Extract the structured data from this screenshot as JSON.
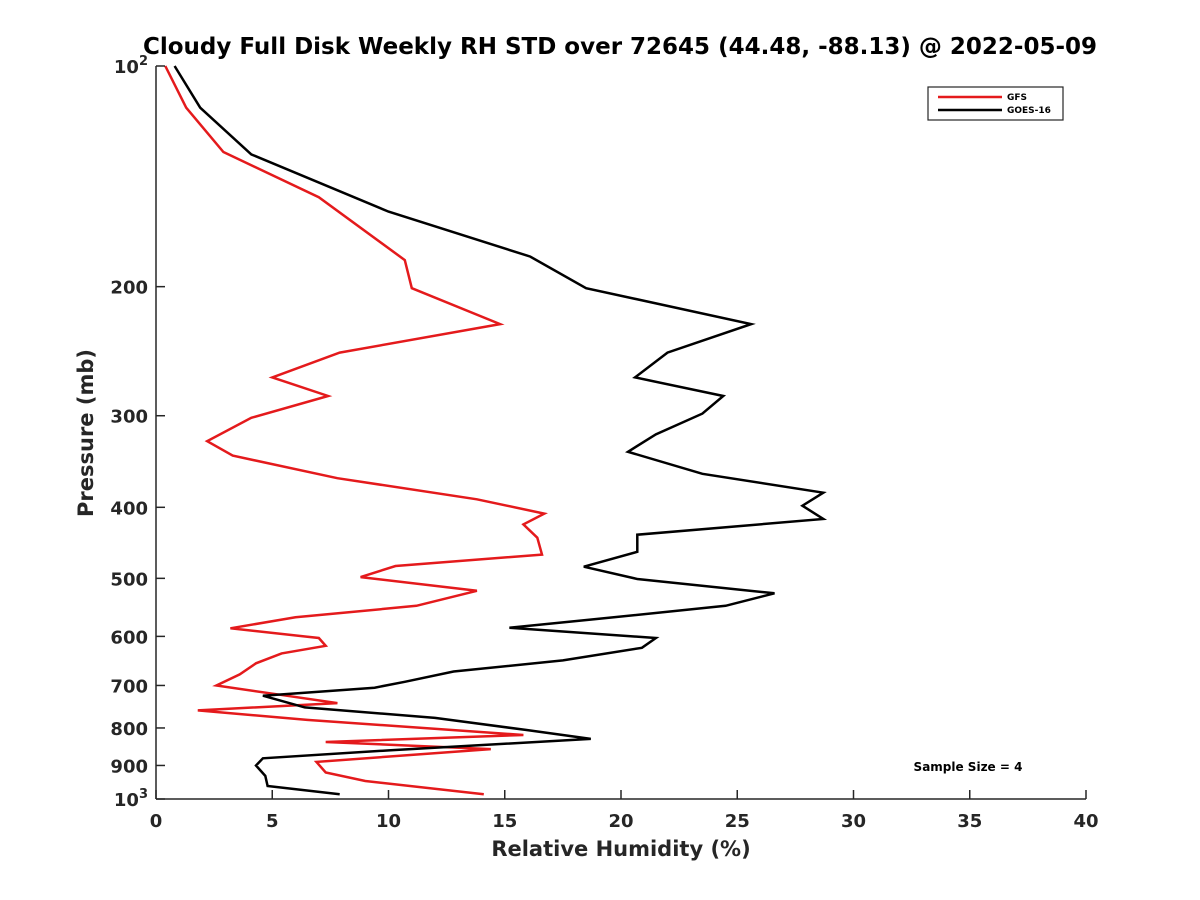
{
  "chart_data": {
    "type": "line",
    "title": "Cloudy Full Disk Weekly RH STD over 72645 (44.48, -88.13) @ 2022-05-09",
    "xlabel": "Relative Humidity (%)",
    "ylabel": "Pressure (mb)",
    "xlim": [
      0,
      40
    ],
    "ylim": [
      100,
      1000
    ],
    "y_scale": "log",
    "y_reversed": true,
    "grid": false,
    "legend_position": "top-right",
    "x_ticks": [
      "0",
      "5",
      "10",
      "15",
      "20",
      "25",
      "30",
      "35",
      "40"
    ],
    "y_ticks": [
      {
        "base": "10",
        "exp": "2"
      },
      {
        "base": "200",
        "exp": ""
      },
      {
        "base": "300",
        "exp": ""
      },
      {
        "base": "400",
        "exp": ""
      },
      {
        "base": "500",
        "exp": ""
      },
      {
        "base": "600",
        "exp": ""
      },
      {
        "base": "700",
        "exp": ""
      },
      {
        "base": "800",
        "exp": ""
      },
      {
        "base": "900",
        "exp": ""
      },
      {
        "base": "10",
        "exp": "3"
      }
    ],
    "annotation": "Sample Size = 4",
    "series": [
      {
        "name": "GFS",
        "color": "#e41a1c",
        "points": [
          [
            0.4,
            100
          ],
          [
            1.3,
            114
          ],
          [
            2.9,
            131
          ],
          [
            7.0,
            151
          ],
          [
            10.7,
            184
          ],
          [
            11.0,
            201
          ],
          [
            14.8,
            225
          ],
          [
            7.9,
            246
          ],
          [
            5.0,
            266
          ],
          [
            7.4,
            282
          ],
          [
            4.1,
            302
          ],
          [
            2.2,
            325
          ],
          [
            3.3,
            340
          ],
          [
            7.8,
            365
          ],
          [
            13.8,
            390
          ],
          [
            16.7,
            408
          ],
          [
            15.8,
            422
          ],
          [
            16.4,
            440
          ],
          [
            16.6,
            464
          ],
          [
            10.3,
            481
          ],
          [
            8.8,
            498
          ],
          [
            13.8,
            520
          ],
          [
            11.2,
            545
          ],
          [
            6.0,
            565
          ],
          [
            3.2,
            585
          ],
          [
            7.0,
            603
          ],
          [
            7.3,
            618
          ],
          [
            5.4,
            633
          ],
          [
            4.3,
            653
          ],
          [
            3.6,
            676
          ],
          [
            2.6,
            700
          ],
          [
            5.5,
            722
          ],
          [
            7.8,
            740
          ],
          [
            1.8,
            757
          ],
          [
            6.5,
            780
          ],
          [
            15.8,
            818
          ],
          [
            7.3,
            836
          ],
          [
            14.4,
            855
          ],
          [
            6.9,
            890
          ],
          [
            7.3,
            920
          ],
          [
            9.0,
            945
          ],
          [
            14.1,
            985
          ]
        ]
      },
      {
        "name": "GOES-16",
        "color": "#000000",
        "points": [
          [
            0.8,
            100
          ],
          [
            1.9,
            114
          ],
          [
            4.1,
            132
          ],
          [
            10.0,
            158
          ],
          [
            16.1,
            182
          ],
          [
            18.5,
            201
          ],
          [
            25.6,
            225
          ],
          [
            22.0,
            246
          ],
          [
            20.6,
            266
          ],
          [
            24.4,
            282
          ],
          [
            23.5,
            298
          ],
          [
            21.5,
            318
          ],
          [
            20.3,
            336
          ],
          [
            23.5,
            360
          ],
          [
            28.7,
            382
          ],
          [
            27.8,
            398
          ],
          [
            28.7,
            415
          ],
          [
            20.7,
            436
          ],
          [
            20.7,
            460
          ],
          [
            18.4,
            482
          ],
          [
            20.7,
            501
          ],
          [
            26.6,
            524
          ],
          [
            24.5,
            545
          ],
          [
            19.0,
            568
          ],
          [
            15.2,
            584
          ],
          [
            21.5,
            603
          ],
          [
            20.9,
            622
          ],
          [
            17.5,
            647
          ],
          [
            12.8,
            670
          ],
          [
            10.7,
            692
          ],
          [
            9.4,
            705
          ],
          [
            4.6,
            723
          ],
          [
            6.4,
            750
          ],
          [
            12.0,
            775
          ],
          [
            15.9,
            805
          ],
          [
            18.7,
            828
          ],
          [
            10.1,
            858
          ],
          [
            4.6,
            880
          ],
          [
            4.3,
            900
          ],
          [
            4.7,
            930
          ],
          [
            4.8,
            960
          ],
          [
            7.9,
            985
          ]
        ]
      }
    ]
  }
}
